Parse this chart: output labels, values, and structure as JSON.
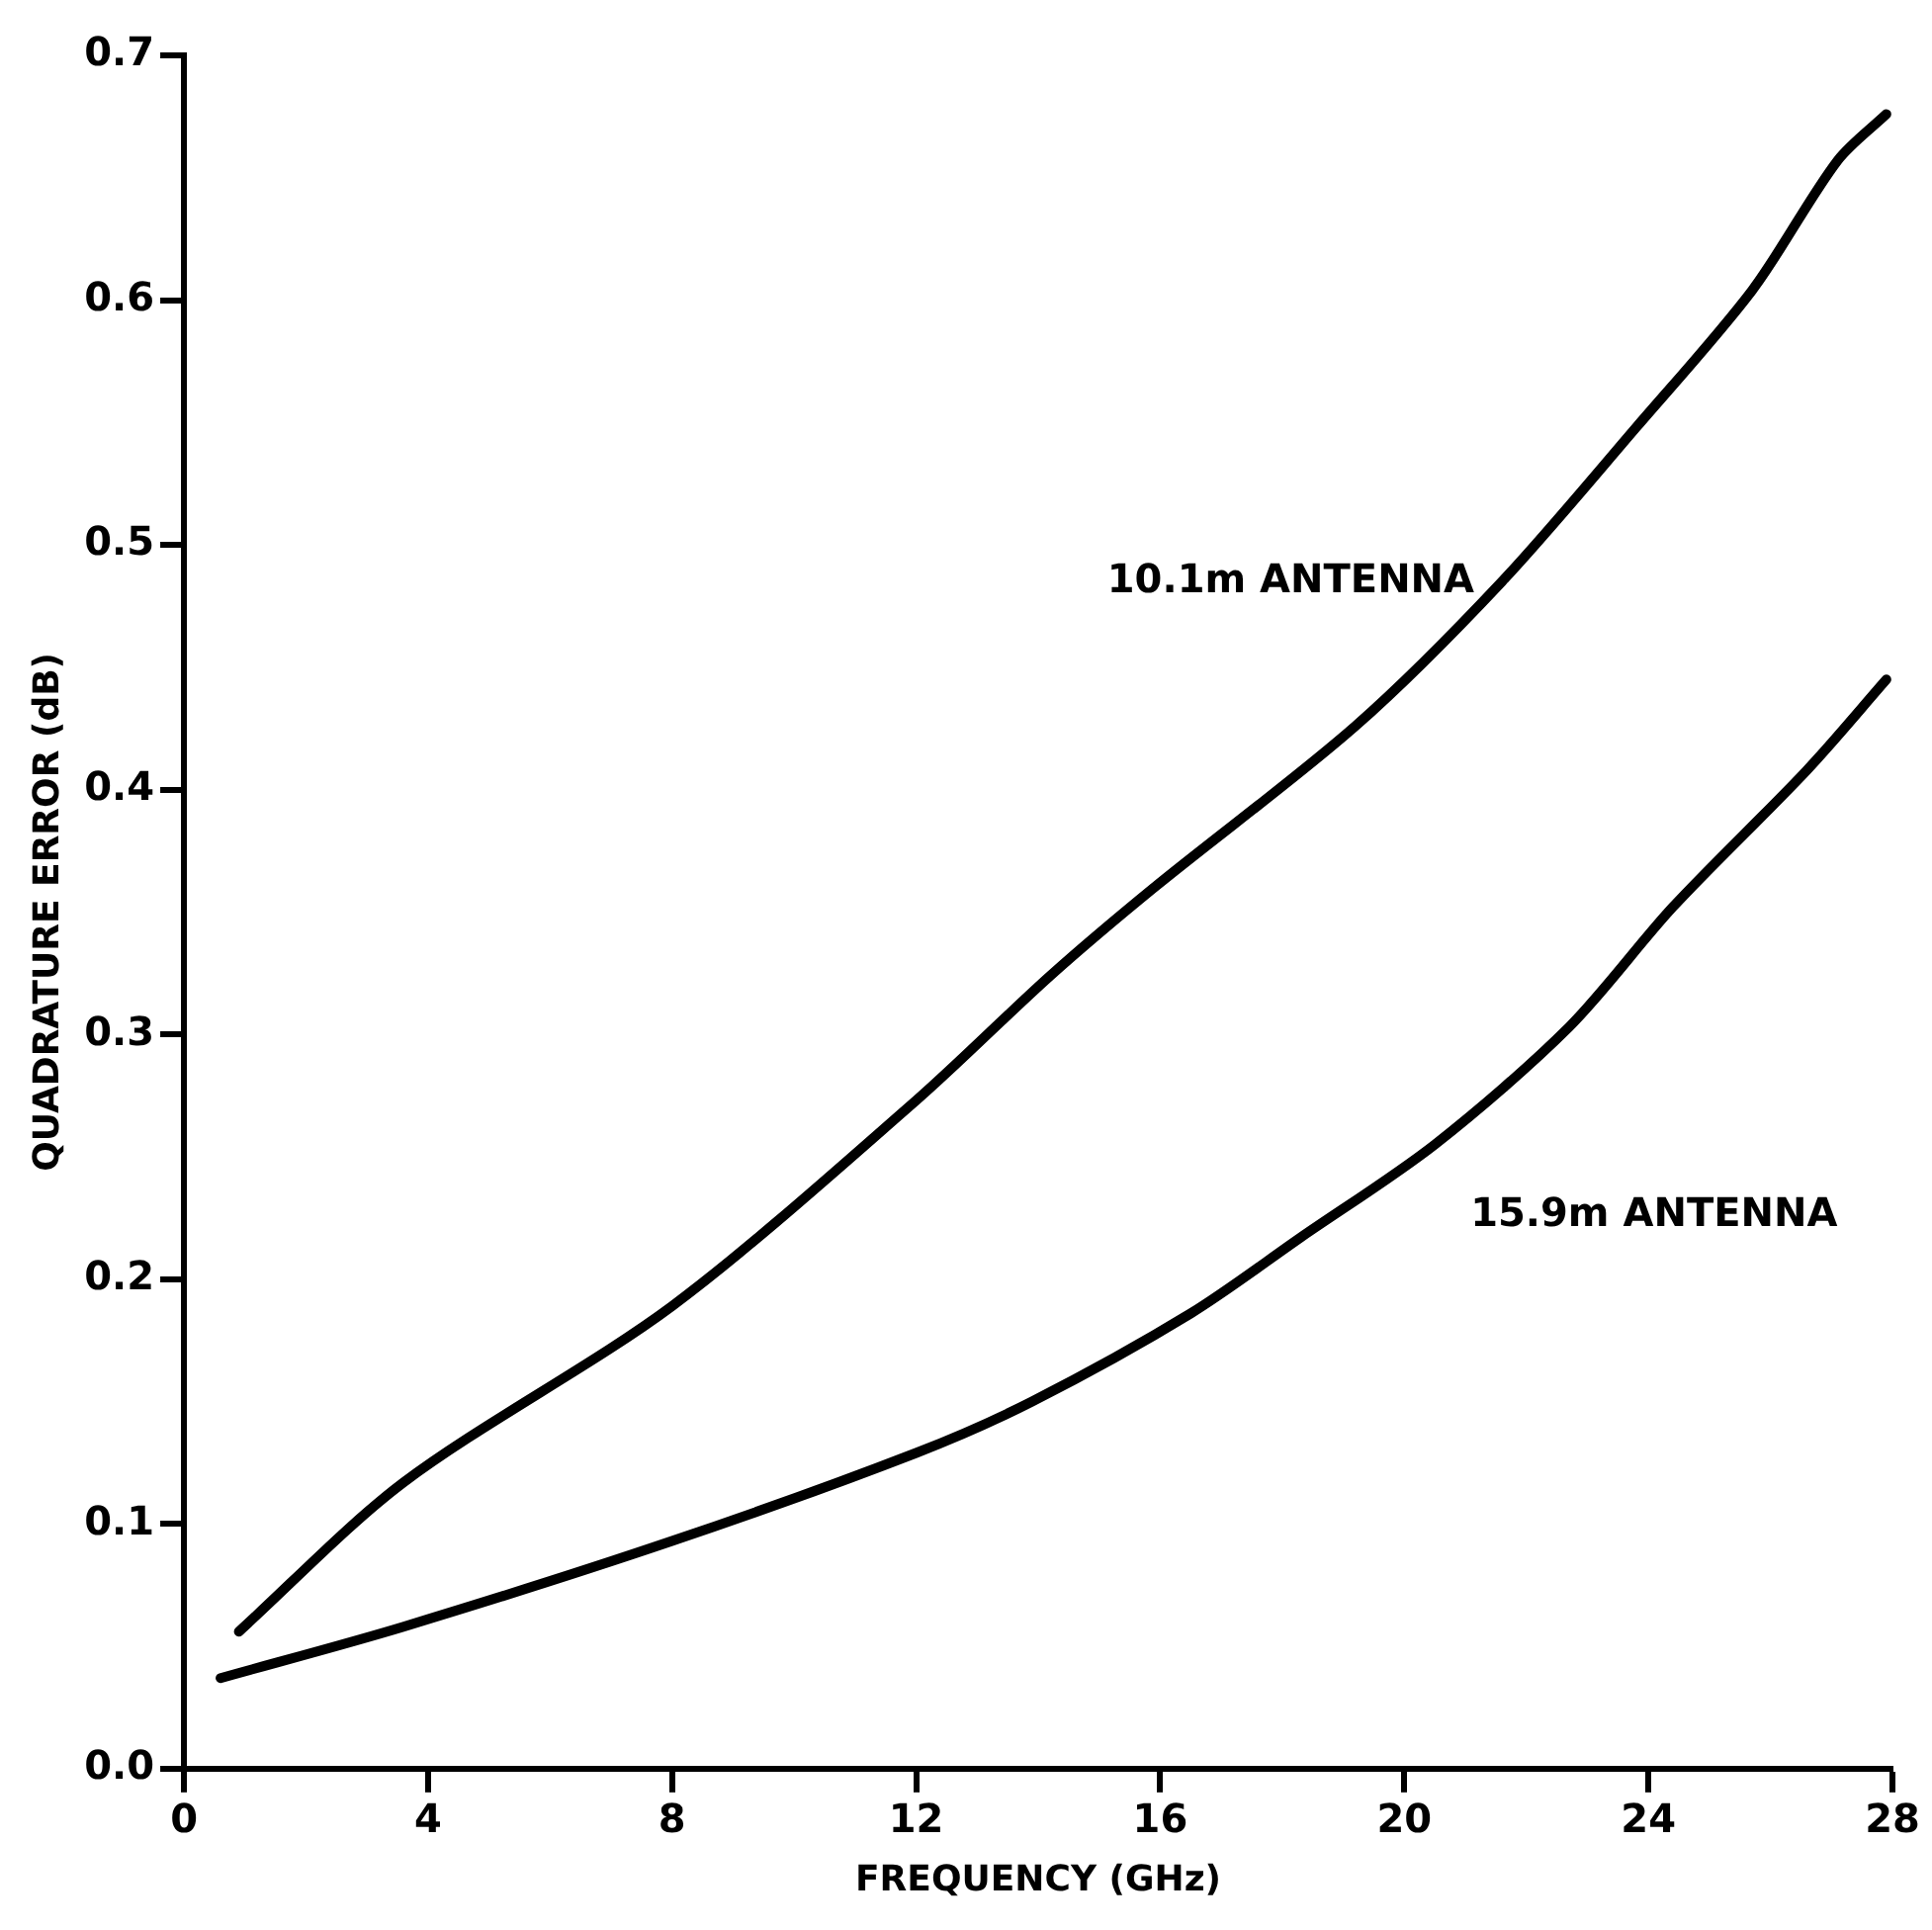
{
  "chart_data": {
    "type": "line",
    "xlabel": "FREQUENCY (GHz)",
    "ylabel": "QUADRATURE ERROR (dB)",
    "xlim": [
      0,
      28
    ],
    "xticks": [
      0,
      4,
      8,
      12,
      16,
      20,
      24,
      28
    ],
    "ylim": [
      0,
      0.7
    ],
    "yticks": [
      {
        "value": 0,
        "label": "0.0"
      },
      0.1,
      0.2,
      0.3,
      0.4,
      0.5,
      0.6,
      0.7
    ],
    "grid": false,
    "legend": false,
    "marker": "none",
    "line_style": "solid",
    "series": [
      {
        "name": "10.1m ANTENNA",
        "color": "#000000",
        "x": [
          0.9,
          3.6,
          8,
          12,
          14.2,
          15.9,
          19.2,
          21.6,
          23.8,
          25.7,
          27.1,
          27.9
        ],
        "values": [
          0.056,
          0.117,
          0.189,
          0.273,
          0.324,
          0.36,
          0.426,
          0.485,
          0.548,
          0.604,
          0.657,
          0.676
        ]
      },
      {
        "name": "15.9m ANTENNA",
        "color": "#000000",
        "x": [
          0.6,
          3.6,
          8,
          12,
          13.9,
          16.5,
          18.3,
          20.5,
          22.7,
          24.4,
          26.6,
          27.9
        ],
        "values": [
          0.037,
          0.058,
          0.093,
          0.129,
          0.15,
          0.186,
          0.217,
          0.255,
          0.303,
          0.352,
          0.408,
          0.445
        ]
      }
    ]
  }
}
